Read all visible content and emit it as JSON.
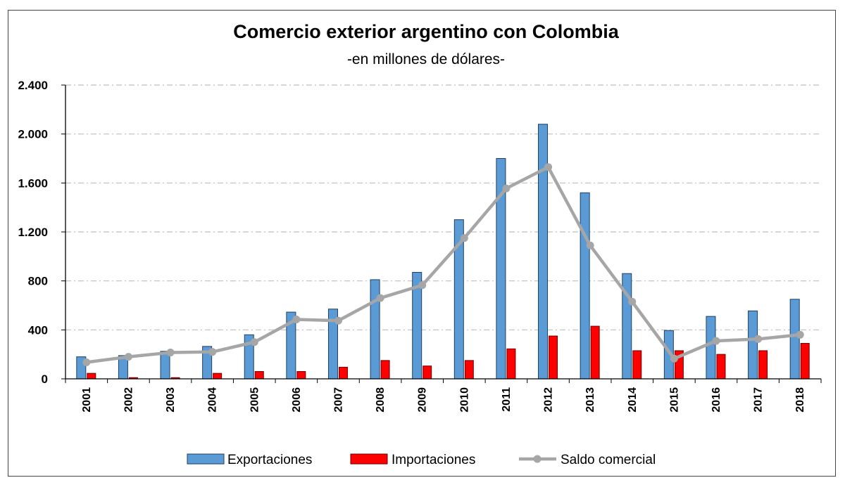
{
  "chart_data": {
    "type": "bar",
    "title": "Comercio exterior argentino con Colombia",
    "subtitle": "-en millones de dólares-",
    "xlabel": "",
    "ylabel": "",
    "categories": [
      "2001",
      "2002",
      "2003",
      "2004",
      "2005",
      "2006",
      "2007",
      "2008",
      "2009",
      "2010",
      "2011",
      "2012",
      "2013",
      "2014",
      "2015",
      "2016",
      "2017",
      "2018"
    ],
    "ylim": [
      0,
      2400
    ],
    "yticks": [
      0,
      400,
      800,
      1200,
      1600,
      2000,
      2400
    ],
    "ytick_labels": [
      "0",
      "400",
      "800",
      "1.200",
      "1.600",
      "2.000",
      "2.400"
    ],
    "grid": "horizontal dash-dot",
    "legend_position": "bottom",
    "series": [
      {
        "name": "Exportaciones",
        "kind": "bar",
        "color": "#5b9bd5",
        "values": [
          180,
          190,
          225,
          265,
          360,
          545,
          570,
          810,
          870,
          1300,
          1800,
          2080,
          1520,
          860,
          395,
          510,
          555,
          650
        ]
      },
      {
        "name": "Importaciones",
        "kind": "bar",
        "color": "#ff0000",
        "values": [
          45,
          10,
          10,
          45,
          60,
          60,
          95,
          150,
          105,
          150,
          245,
          350,
          430,
          230,
          230,
          200,
          230,
          290
        ]
      },
      {
        "name": "Saldo comercial",
        "kind": "line",
        "color": "#a6a6a6",
        "values": [
          135,
          180,
          215,
          220,
          300,
          485,
          475,
          660,
          765,
          1150,
          1555,
          1730,
          1090,
          630,
          165,
          310,
          325,
          360
        ]
      }
    ]
  }
}
